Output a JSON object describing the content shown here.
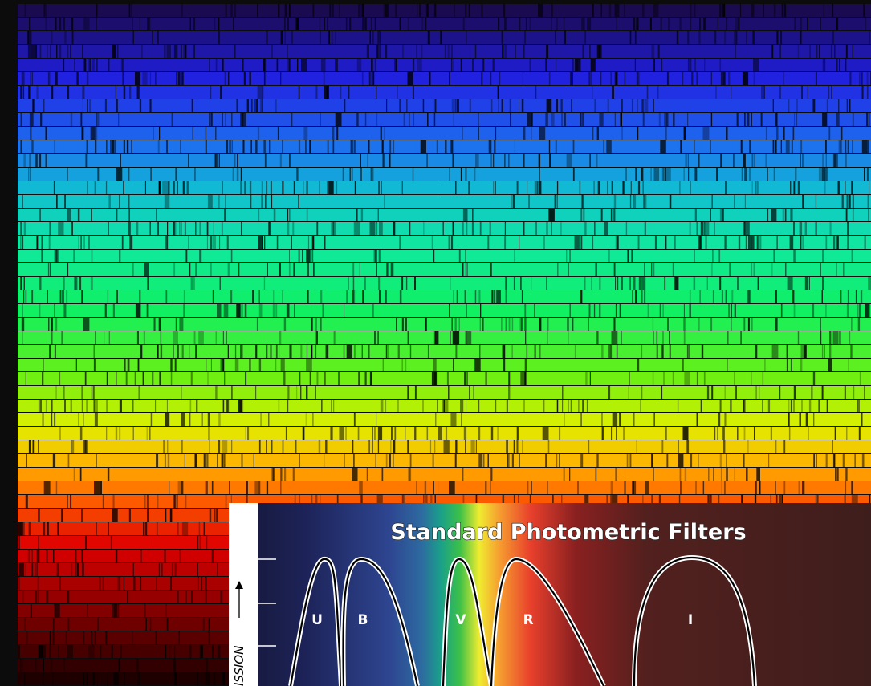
{
  "inset": {
    "title": "Standard Photometric Filters",
    "axis_label": "ISSION",
    "filters": [
      "U",
      "B",
      "V",
      "R",
      "I"
    ]
  }
}
